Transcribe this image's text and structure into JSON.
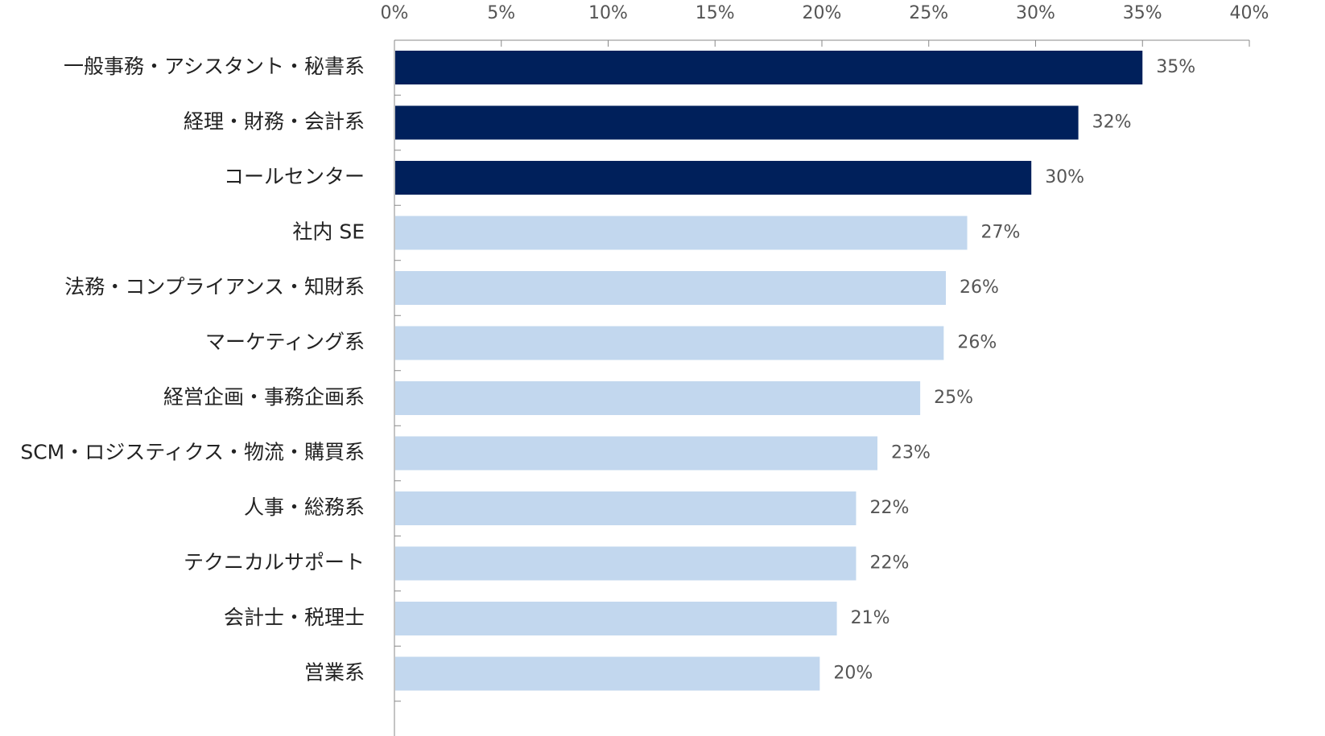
{
  "chart_data": {
    "type": "bar",
    "orientation": "horizontal",
    "title": "",
    "xlabel": "",
    "ylabel": "",
    "xlim": [
      0,
      40
    ],
    "x_ticks": [
      0,
      5,
      10,
      15,
      20,
      25,
      30,
      35,
      40
    ],
    "x_tick_labels": [
      "0%",
      "5%",
      "10%",
      "15%",
      "20%",
      "25%",
      "30%",
      "35%",
      "40%"
    ],
    "grid": false,
    "axis_position": "top",
    "categories": [
      "一般事務・アシスタント・秘書系",
      "経理・財務・会計系",
      "コールセンター",
      "社内 SE",
      "法務・コンプライアンス・知財系",
      "マーケティング系",
      "経営企画・事務企画系",
      "SCM・ロジスティクス・物流・購買系",
      "人事・総務系",
      "テクニカルサポート",
      "会計士・税理士",
      "営業系"
    ],
    "values": [
      35,
      32,
      30,
      27,
      26,
      26,
      25,
      23,
      22,
      22,
      21,
      20
    ],
    "plotted_values": [
      35.0,
      32.0,
      29.8,
      26.8,
      25.8,
      25.7,
      24.6,
      22.6,
      21.6,
      21.6,
      20.7,
      19.9
    ],
    "value_labels": [
      "35%",
      "32%",
      "30%",
      "27%",
      "26%",
      "26%",
      "25%",
      "23%",
      "22%",
      "22%",
      "21%",
      "20%"
    ],
    "highlight": [
      true,
      true,
      true,
      false,
      false,
      false,
      false,
      false,
      false,
      false,
      false,
      false
    ],
    "colors": {
      "highlight": "#00205b",
      "normal": "#c2d7ee",
      "axis": "#888888"
    }
  }
}
